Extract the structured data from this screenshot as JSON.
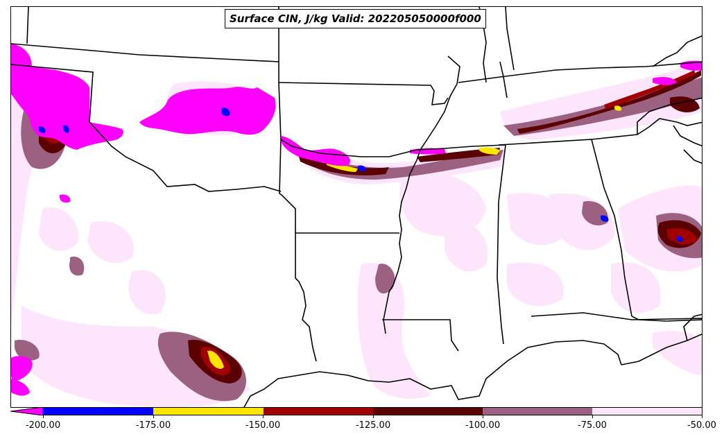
{
  "map": {
    "title": "Surface CIN, J/kg Valid: 202205050000f000",
    "field": "Surface CIN",
    "units": "J/kg",
    "valid": "202205050000f000",
    "region": "South-central and southeastern United States"
  },
  "colorbar": {
    "extend": "min",
    "ticks": [
      "-200.00",
      "-175.00",
      "-150.00",
      "-125.00",
      "-100.00",
      "-75.00",
      "-50.00"
    ],
    "levels": [
      {
        "from": -200,
        "to": -175,
        "color": "#0000ff"
      },
      {
        "from": -175,
        "to": -150,
        "color": "#ffe600"
      },
      {
        "from": -150,
        "to": -125,
        "color": "#a00000"
      },
      {
        "from": -125,
        "to": -100,
        "color": "#5a0000"
      },
      {
        "from": -100,
        "to": -75,
        "color": "#9c6080"
      },
      {
        "from": -75,
        "to": -50,
        "color": "#fde6fb"
      }
    ],
    "under_color": "#ff00ff"
  },
  "colors": {
    "magenta": "#ff00ff",
    "blue": "#0000ff",
    "yellow": "#ffe600",
    "red": "#a00000",
    "darkred": "#5a0000",
    "mauve": "#9c6080",
    "lightpink": "#fde6fb",
    "boundary": "#000000"
  }
}
